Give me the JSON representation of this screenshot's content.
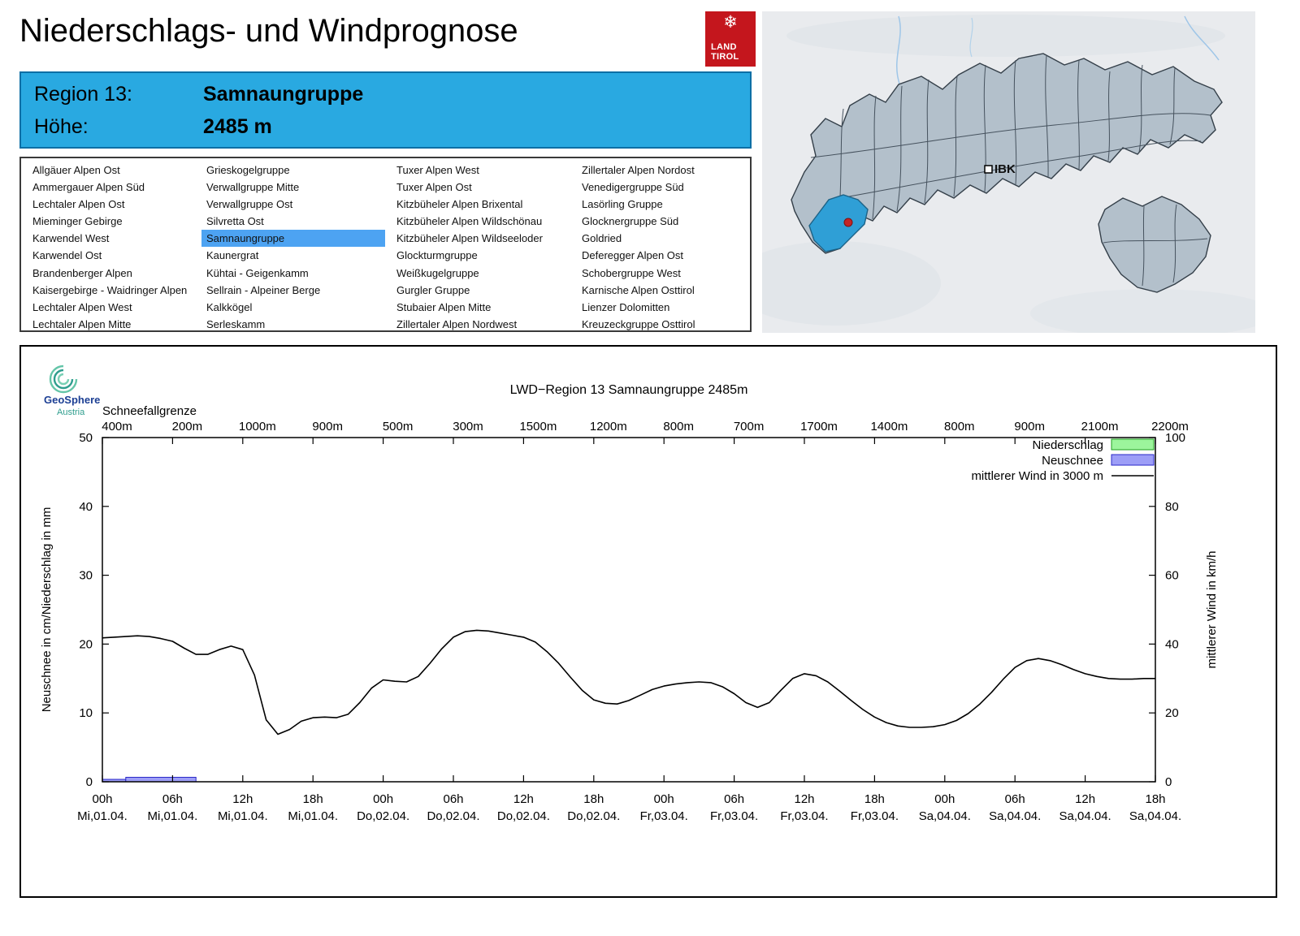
{
  "page": {
    "title": "Niederschlags- und Windprognose"
  },
  "land_tirol_logo": {
    "line1": "LAND",
    "line2": "TIROL",
    "snowflake": "❄"
  },
  "region_info": {
    "region_label": "Region 13:",
    "region_value": "Samnaungruppe",
    "elevation_label": "Höhe:",
    "elevation_value": "2485 m"
  },
  "region_list": {
    "selected": "Samnaungruppe",
    "columns": [
      [
        "Allgäuer Alpen Ost",
        "Ammergauer Alpen Süd",
        "Lechtaler Alpen Ost",
        "Mieminger Gebirge",
        "Karwendel West",
        "Karwendel Ost",
        "Brandenberger Alpen",
        "Kaisergebirge - Waidringer Alpen",
        "Lechtaler Alpen West",
        "Lechtaler Alpen Mitte"
      ],
      [
        "Grieskogelgruppe",
        "Verwallgruppe Mitte",
        "Verwallgruppe Ost",
        "Silvretta Ost",
        "Samnaungruppe",
        "Kaunergrat",
        "Kühtai - Geigenkamm",
        "Sellrain - Alpeiner Berge",
        "Kalkkögel",
        "Serleskamm"
      ],
      [
        "Tuxer Alpen West",
        "Tuxer Alpen Ost",
        "Kitzbüheler Alpen Brixental",
        "Kitzbüheler Alpen Wildschönau",
        "Kitzbüheler Alpen Wildseeloder",
        "Glockturmgruppe",
        "Weißkugelgruppe",
        "Gurgler Gruppe",
        "Stubaier Alpen Mitte",
        "Zillertaler Alpen Nordwest"
      ],
      [
        "Zillertaler Alpen Nordost",
        "Venedigergruppe Süd",
        "Lasörling Gruppe",
        "Glocknergruppe Süd",
        "Goldried",
        "Deferegger Alpen Ost",
        "Schobergruppe West",
        "Karnische Alpen Osttirol",
        "Lienzer Dolomitten",
        "Kreuzeckgruppe Osttirol"
      ]
    ]
  },
  "map": {
    "marker_label": "IBK",
    "highlight_color": "#2f9fd6",
    "dot_color": "#c32525"
  },
  "geosphere_logo": {
    "name": "GeoSphere",
    "country": "Austria"
  },
  "chart_data": {
    "type": "line+bar",
    "title": "LWD−Region 13 Samnaungruppe 2485m",
    "top_axis": {
      "label": "Schneefallgrenze",
      "values": [
        "400m",
        "200m",
        "1000m",
        "900m",
        "500m",
        "300m",
        "1500m",
        "1200m",
        "800m",
        "700m",
        "1700m",
        "1400m",
        "800m",
        "900m",
        "2100m",
        "2200m"
      ]
    },
    "x_axis": {
      "hours_span": 90,
      "tick_hours": [
        "00h",
        "06h",
        "12h",
        "18h",
        "00h",
        "06h",
        "12h",
        "18h",
        "00h",
        "06h",
        "12h",
        "18h",
        "00h",
        "06h",
        "12h",
        "18h"
      ],
      "tick_days": [
        "Mi,01.04.",
        "Mi,01.04.",
        "Mi,01.04.",
        "Mi,01.04.",
        "Do,02.04.",
        "Do,02.04.",
        "Do,02.04.",
        "Do,02.04.",
        "Fr,03.04.",
        "Fr,03.04.",
        "Fr,03.04.",
        "Fr,03.04.",
        "Sa,04.04.",
        "Sa,04.04.",
        "Sa,04.04.",
        "Sa,04.04."
      ]
    },
    "left_axis": {
      "label": "Neuschnee in cm/Niederschlag in mm",
      "min": 0,
      "max": 50,
      "ticks": [
        0,
        10,
        20,
        30,
        40,
        50
      ]
    },
    "right_axis": {
      "label": "mittlerer Wind in km/h",
      "min": 0,
      "max": 100,
      "ticks": [
        0,
        20,
        40,
        60,
        80,
        100
      ]
    },
    "legend": [
      {
        "label": "Niederschlag",
        "type": "box",
        "fill": "#9cf59c",
        "stroke": "#1f9e1f"
      },
      {
        "label": "Neuschnee",
        "type": "box",
        "fill": "#9d9ef7",
        "stroke": "#2a28c8"
      },
      {
        "label": "mittlerer Wind in 3000 m",
        "type": "line",
        "stroke": "#000000"
      }
    ],
    "series": {
      "wind_kmh": {
        "step_hours": 1,
        "values": [
          41.8,
          42.0,
          42.2,
          42.4,
          42.2,
          41.6,
          40.8,
          38.8,
          37.0,
          37.0,
          38.4,
          39.4,
          38.4,
          31.0,
          18.0,
          13.8,
          15.2,
          17.6,
          18.6,
          18.8,
          18.6,
          19.6,
          23.0,
          27.2,
          29.6,
          29.2,
          29.0,
          30.6,
          34.4,
          38.6,
          42.0,
          43.6,
          44.0,
          43.8,
          43.2,
          42.6,
          42.0,
          40.6,
          37.8,
          34.4,
          30.4,
          26.6,
          23.8,
          22.8,
          22.6,
          23.6,
          25.2,
          26.8,
          27.8,
          28.4,
          28.8,
          29.0,
          28.8,
          27.6,
          25.6,
          23.0,
          21.6,
          23.0,
          26.6,
          30.0,
          31.4,
          30.8,
          29.0,
          26.4,
          23.6,
          21.0,
          18.8,
          17.2,
          16.2,
          15.8,
          15.8,
          16.0,
          16.6,
          17.8,
          19.8,
          22.6,
          26.0,
          29.8,
          33.2,
          35.2,
          35.8,
          35.2,
          34.0,
          32.6,
          31.4,
          30.6,
          30.0,
          29.8,
          29.8,
          30.0,
          30.0
        ]
      },
      "neuschnee_cm": {
        "segments": [
          {
            "from": 0,
            "to": 2,
            "value": 0.35
          },
          {
            "from": 2,
            "to": 8,
            "value": 0.65
          }
        ]
      },
      "niederschlag_mm": {
        "segments": []
      }
    }
  }
}
